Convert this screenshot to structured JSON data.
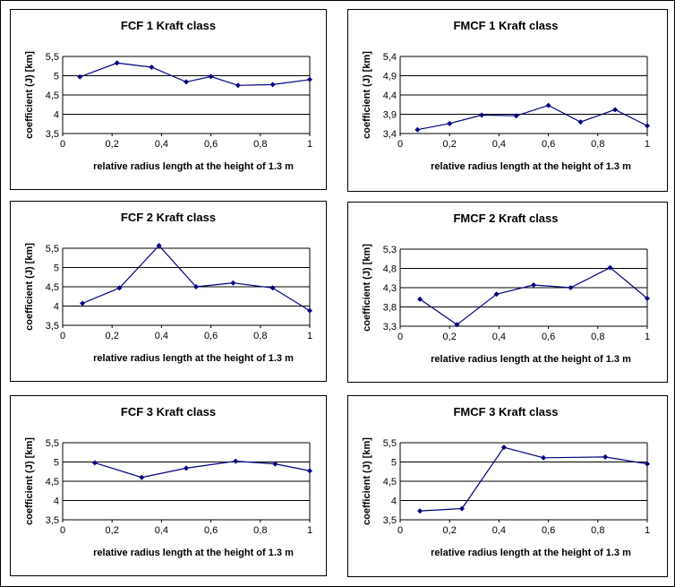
{
  "figure_colors": {
    "series": "#000080",
    "marker": "#000080",
    "grid": "#000000",
    "background": "#ffffff"
  },
  "chart_data": [
    {
      "type": "line",
      "title": "FCF  1 Kraft class",
      "xlabel": "relative radius length at the height of 1.3 m",
      "ylabel": "coefficient (J) [km]",
      "xlim": [
        0,
        1
      ],
      "ylim": [
        3.5,
        5.5
      ],
      "xticks": [
        "0",
        "0,2",
        "0,4",
        "0,6",
        "0,8",
        "1"
      ],
      "yticks": [
        "3,5",
        "4",
        "4,5",
        "5",
        "5,5"
      ],
      "grid": "horizontal",
      "x": [
        0.07,
        0.22,
        0.36,
        0.5,
        0.6,
        0.71,
        0.85,
        1.0
      ],
      "y": [
        4.97,
        5.33,
        5.22,
        4.84,
        4.98,
        4.75,
        4.77,
        4.9
      ]
    },
    {
      "type": "line",
      "title": "FMCF 1 Kraft class",
      "xlabel": "relative radius length at the height of 1.3 m",
      "ylabel": "coefficient (J) [km]",
      "xlim": [
        0,
        1
      ],
      "ylim": [
        3.4,
        5.4
      ],
      "xticks": [
        "0",
        "0,2",
        "0,4",
        "0,6",
        "0,8",
        "1"
      ],
      "yticks": [
        "3,4",
        "3,9",
        "4,4",
        "4,9",
        "5,4"
      ],
      "grid": "horizontal",
      "x": [
        0.07,
        0.2,
        0.33,
        0.47,
        0.6,
        0.73,
        0.87,
        1.0
      ],
      "y": [
        3.5,
        3.66,
        3.88,
        3.86,
        4.13,
        3.7,
        4.02,
        3.6
      ]
    },
    {
      "type": "line",
      "title": "FCF 2 Kraft class",
      "xlabel": "relative radius length at the height of 1.3 m",
      "ylabel": "coefficient (J) [km]",
      "xlim": [
        0,
        1
      ],
      "ylim": [
        3.5,
        5.5
      ],
      "xticks": [
        "0",
        "0,2",
        "0,4",
        "0,6",
        "0,8",
        "1"
      ],
      "yticks": [
        "3,5",
        "4",
        "4,5",
        "5",
        "5,5"
      ],
      "grid": "horizontal",
      "x": [
        0.08,
        0.23,
        0.39,
        0.54,
        0.69,
        0.85,
        1.0
      ],
      "y": [
        4.07,
        4.47,
        5.57,
        4.5,
        4.6,
        4.47,
        3.88
      ]
    },
    {
      "type": "line",
      "title": "FMCF 2 Kraft class",
      "xlabel": "relative radius length at the height of 1.3 m",
      "ylabel": "coefficient (J) [km]",
      "xlim": [
        0,
        1
      ],
      "ylim": [
        3.3,
        5.3
      ],
      "xticks": [
        "0",
        "0,2",
        "0,4",
        "0,6",
        "0,8",
        "1"
      ],
      "yticks": [
        "3,3",
        "3,8",
        "4,3",
        "4,8",
        "5,3"
      ],
      "grid": "horizontal",
      "x": [
        0.08,
        0.23,
        0.39,
        0.54,
        0.69,
        0.85,
        1.0
      ],
      "y": [
        4.0,
        3.34,
        4.13,
        4.37,
        4.3,
        4.82,
        4.02
      ]
    },
    {
      "type": "line",
      "title": "FCF 3 Kraft class",
      "xlabel": "relative radius length at the height of 1.3 m",
      "ylabel": "coefficient (J) [km]",
      "xlim": [
        0,
        1
      ],
      "ylim": [
        3.5,
        5.5
      ],
      "xticks": [
        "0",
        "0,2",
        "0,4",
        "0,6",
        "0,8",
        "1"
      ],
      "yticks": [
        "3,5",
        "4",
        "4,5",
        "5",
        "5,5"
      ],
      "grid": "horizontal",
      "x": [
        0.13,
        0.32,
        0.5,
        0.7,
        0.86,
        1.0
      ],
      "y": [
        4.98,
        4.6,
        4.84,
        5.02,
        4.95,
        4.77
      ]
    },
    {
      "type": "line",
      "title": "FMCF 3 Kraft class",
      "xlabel": "relative radius length at the height of 1.3 m",
      "ylabel": "coefficient (J) [km]",
      "xlim": [
        0,
        1
      ],
      "ylim": [
        3.5,
        5.5
      ],
      "xticks": [
        "0",
        "0,2",
        "0,4",
        "0,6",
        "0,8",
        "1"
      ],
      "yticks": [
        "3,5",
        "4",
        "4,5",
        "5",
        "5,5"
      ],
      "grid": "horizontal",
      "x": [
        0.08,
        0.25,
        0.42,
        0.58,
        0.83,
        1.0
      ],
      "y": [
        3.73,
        3.79,
        5.38,
        5.11,
        5.13,
        4.95
      ]
    }
  ]
}
